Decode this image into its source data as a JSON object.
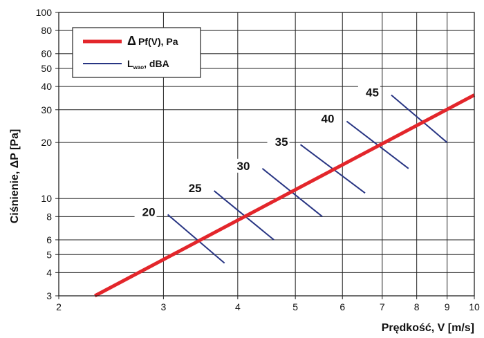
{
  "chart_data": {
    "type": "line",
    "xlabel": "Prędkość, V [m/s]",
    "ylabel": "Ciśnienie, ΔP [Pa]",
    "x_scale": "log",
    "y_scale": "log",
    "xlim": [
      2,
      10
    ],
    "ylim": [
      3,
      100
    ],
    "x_ticks": [
      2,
      3,
      4,
      5,
      6,
      7,
      8,
      9,
      10
    ],
    "y_ticks": [
      3,
      4,
      5,
      6,
      8,
      10,
      20,
      30,
      40,
      50,
      60,
      80,
      100
    ],
    "grid": true,
    "legend_position": "top-left",
    "legend": [
      {
        "symbol": "Δ",
        "text": "Pf(V), Pa",
        "color": "#e3262b"
      },
      {
        "text_main": "L",
        "text_sub": "wao",
        "text_rest": ", dBA",
        "color": "#283583"
      }
    ],
    "series": [
      {
        "name": "ΔPf(V), Pa",
        "color": "#e3262b",
        "points": [
          [
            2.3,
            3.0
          ],
          [
            10.0,
            36.0
          ]
        ]
      }
    ],
    "noise_lines": [
      {
        "label": "20",
        "start": [
          3.05,
          8.2
        ],
        "end": [
          3.8,
          4.5
        ]
      },
      {
        "label": "25",
        "start": [
          3.65,
          11.0
        ],
        "end": [
          4.6,
          6.0
        ]
      },
      {
        "label": "30",
        "start": [
          4.4,
          14.5
        ],
        "end": [
          5.55,
          8.0
        ]
      },
      {
        "label": "35",
        "start": [
          5.1,
          19.5
        ],
        "end": [
          6.55,
          10.7
        ]
      },
      {
        "label": "40",
        "start": [
          6.1,
          26.0
        ],
        "end": [
          7.75,
          14.5
        ]
      },
      {
        "label": "45",
        "start": [
          7.25,
          36.0
        ],
        "end": [
          9.0,
          20.0
        ]
      }
    ]
  }
}
